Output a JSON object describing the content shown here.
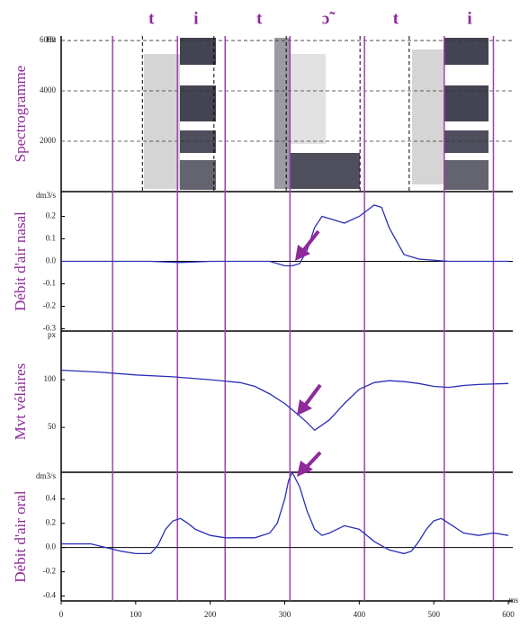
{
  "chart_data": [
    {
      "type": "spectrogram",
      "ylabel": "Spectrogramme",
      "unit": "Hz",
      "ylim": [
        0,
        6180
      ],
      "yticks": [
        2000,
        4000,
        6000
      ],
      "grid": true,
      "phonemes": [
        {
          "label": "t",
          "x": 121
        },
        {
          "label": "i",
          "x": 181
        },
        {
          "label": "t",
          "x": 266
        },
        {
          "label": "ɔ̃",
          "x": 355
        },
        {
          "label": "t",
          "x": 449
        },
        {
          "label": "i",
          "x": 548
        }
      ],
      "spectral_boundaries": [
        109,
        205,
        302,
        401,
        467
      ],
      "segment_boundaries": [
        69,
        156,
        220,
        307,
        407,
        514,
        580
      ]
    },
    {
      "type": "line",
      "ylabel": "Débit d'air nasal",
      "unit": "dm3/s",
      "ylim": [
        -0.31,
        0.31
      ],
      "color": "#2a2fb8",
      "yticks": [
        0.2,
        0.1,
        {
          "value": 0,
          "label": "0.0"
        },
        -0.1,
        -0.2,
        -0.3
      ],
      "x": [
        0,
        40,
        80,
        120,
        160,
        200,
        240,
        280,
        300,
        310,
        320,
        330,
        340,
        350,
        360,
        380,
        400,
        420,
        430,
        440,
        460,
        480,
        520,
        560,
        600
      ],
      "values": [
        0,
        0,
        0,
        0,
        -0.005,
        0,
        0,
        0,
        -0.02,
        -0.02,
        -0.01,
        0.05,
        0.15,
        0.2,
        0.19,
        0.17,
        0.2,
        0.25,
        0.24,
        0.15,
        0.03,
        0.01,
        0,
        0,
        0
      ]
    },
    {
      "type": "line",
      "ylabel": "Mvt vélaires",
      "unit": "px",
      "ylim": [
        3,
        151
      ],
      "color": "#2a2fb8",
      "yticks": [
        100,
        50
      ],
      "x": [
        0,
        50,
        100,
        150,
        200,
        240,
        260,
        280,
        300,
        320,
        330,
        340,
        360,
        380,
        400,
        420,
        440,
        460,
        480,
        500,
        520,
        540,
        560,
        600
      ],
      "values": [
        110,
        108,
        105,
        103,
        100,
        97,
        93,
        85,
        75,
        62,
        55,
        47,
        58,
        75,
        90,
        97,
        99,
        98,
        96,
        93,
        92,
        94,
        95,
        96
      ]
    },
    {
      "type": "line",
      "ylabel": "Débit d'air oral",
      "unit": "dm3/s",
      "ylim": [
        -0.44,
        0.62
      ],
      "color": "#2a2fb8",
      "yticks": [
        0.4,
        0.2,
        {
          "value": 0,
          "label": "0.0"
        },
        -0.2,
        -0.4
      ],
      "xlim": [
        0,
        606
      ],
      "xticks": [
        0,
        100,
        200,
        300,
        400,
        500,
        600
      ],
      "xunit": "ms",
      "x": [
        0,
        40,
        60,
        80,
        100,
        120,
        130,
        140,
        150,
        160,
        170,
        180,
        200,
        220,
        260,
        280,
        290,
        300,
        305,
        310,
        320,
        330,
        340,
        350,
        360,
        380,
        400,
        420,
        440,
        460,
        470,
        480,
        490,
        500,
        510,
        520,
        540,
        560,
        580,
        600
      ],
      "values": [
        0.03,
        0.03,
        0.0,
        -0.03,
        -0.05,
        -0.05,
        0.02,
        0.15,
        0.22,
        0.24,
        0.2,
        0.15,
        0.1,
        0.08,
        0.08,
        0.12,
        0.2,
        0.4,
        0.55,
        0.62,
        0.5,
        0.3,
        0.15,
        0.1,
        0.12,
        0.18,
        0.15,
        0.05,
        -0.02,
        -0.05,
        -0.03,
        0.05,
        0.15,
        0.22,
        0.24,
        0.2,
        0.12,
        0.1,
        0.12,
        0.1
      ]
    }
  ]
}
